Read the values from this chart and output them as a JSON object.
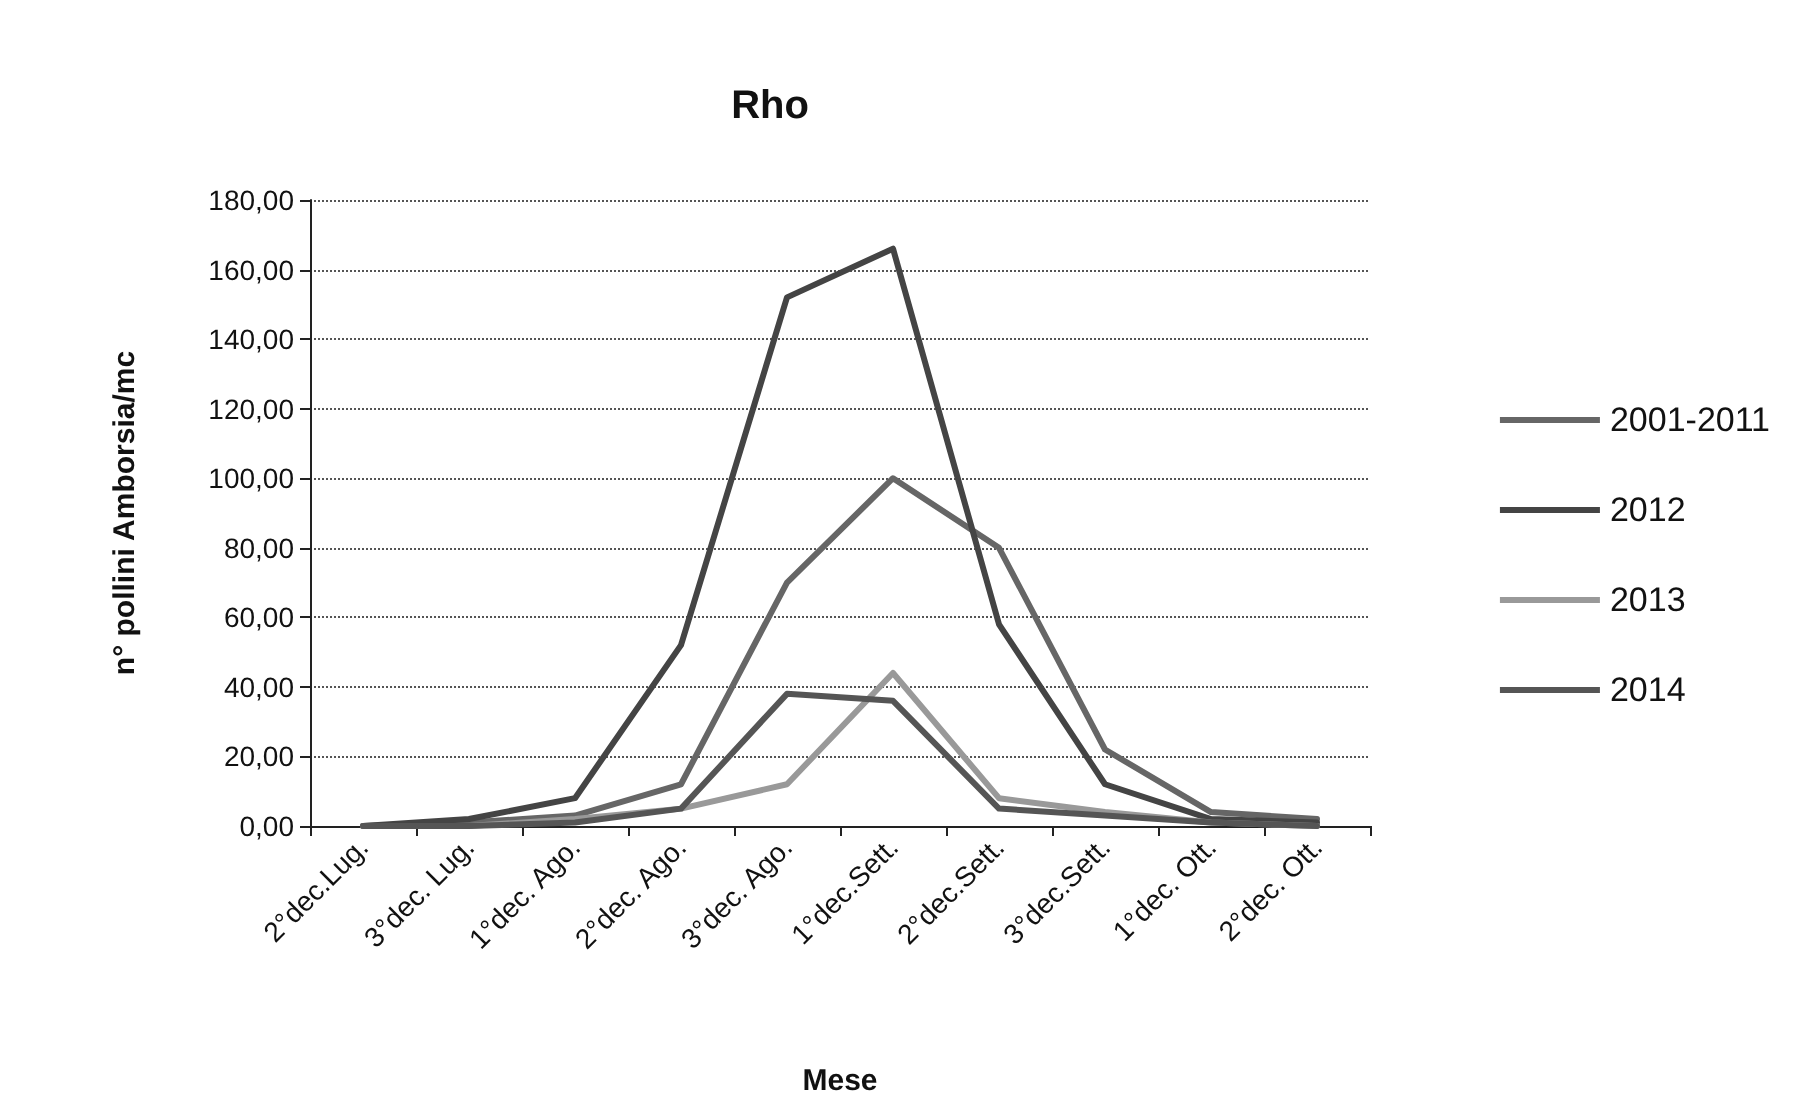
{
  "chart_data": {
    "type": "line",
    "title": "Rho",
    "xlabel": "Mese",
    "ylabel": "n° pollini Amborsia/mc",
    "categories": [
      "2°dec.Lug.",
      "3°dec. Lug.",
      "1°dec. Ago.",
      "2°dec. Ago.",
      "3°dec. Ago.",
      "1°dec.Sett.",
      "2°dec.Sett.",
      "3°dec.Sett.",
      "1°dec. Ott.",
      "2°dec. Ott."
    ],
    "series": [
      {
        "name": "2001-2011",
        "color": "#666666",
        "values": [
          0,
          1,
          3,
          12,
          70,
          100,
          80,
          22,
          4,
          2
        ]
      },
      {
        "name": "2012",
        "color": "#444444",
        "values": [
          0,
          2,
          8,
          52,
          152,
          166,
          58,
          12,
          2,
          1
        ]
      },
      {
        "name": "2013",
        "color": "#999999",
        "values": [
          0,
          0,
          2,
          5,
          12,
          44,
          8,
          4,
          1,
          0
        ]
      },
      {
        "name": "2014",
        "color": "#555555",
        "values": [
          0,
          0,
          1,
          5,
          38,
          36,
          5,
          3,
          1,
          0
        ]
      }
    ],
    "ylim": [
      0,
      180
    ],
    "yticks": [
      {
        "value": 0,
        "label": "0,00"
      },
      {
        "value": 20,
        "label": "20,00"
      },
      {
        "value": 40,
        "label": "40,00"
      },
      {
        "value": 60,
        "label": "60,00"
      },
      {
        "value": 80,
        "label": "80,00"
      },
      {
        "value": 100,
        "label": "100,00"
      },
      {
        "value": 120,
        "label": "120,00"
      },
      {
        "value": 140,
        "label": "140,00"
      },
      {
        "value": 160,
        "label": "160,00"
      },
      {
        "value": 180,
        "label": "180,00"
      }
    ],
    "grid": "y",
    "legend": "right",
    "marker": "none",
    "line_style": "solid"
  }
}
